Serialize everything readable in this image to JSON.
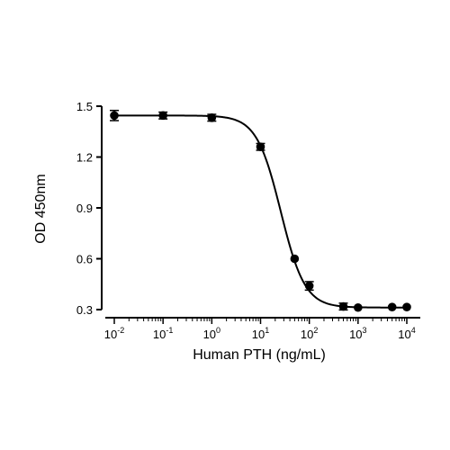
{
  "chart_data": {
    "type": "scatter",
    "xlabel": "Human PTH (ng/mL)",
    "ylabel": "OD 450nm",
    "x_scale": "log",
    "xlim": [
      0.01,
      10000
    ],
    "ylim": [
      0.3,
      1.5
    ],
    "y_ticks": [
      "0.3",
      "0.6",
      "0.9",
      "1.2",
      "1.5"
    ],
    "x_ticks": [
      {
        "base": "10",
        "exp": "-2"
      },
      {
        "base": "10",
        "exp": "-1"
      },
      {
        "base": "10",
        "exp": "0"
      },
      {
        "base": "10",
        "exp": "1"
      },
      {
        "base": "10",
        "exp": "2"
      },
      {
        "base": "10",
        "exp": "3"
      },
      {
        "base": "10",
        "exp": "4"
      }
    ],
    "grid": false,
    "legend": "none",
    "marker_color": "#000000",
    "series": [
      {
        "x": [
          0.01,
          0.1,
          1,
          10,
          50,
          100,
          500,
          1000,
          5000,
          10000
        ],
        "y": [
          1.445,
          1.445,
          1.432,
          1.26,
          0.6,
          0.44,
          0.318,
          0.312,
          0.315,
          0.315
        ],
        "error": [
          0.03,
          0.02,
          0.02,
          0.02,
          0.0,
          0.025,
          0.02,
          0.0,
          0.0,
          0.0
        ]
      }
    ],
    "fit": {
      "model": "4PL",
      "top": 1.445,
      "bottom": 0.312,
      "ec50": 26,
      "hill": 1.75
    }
  }
}
